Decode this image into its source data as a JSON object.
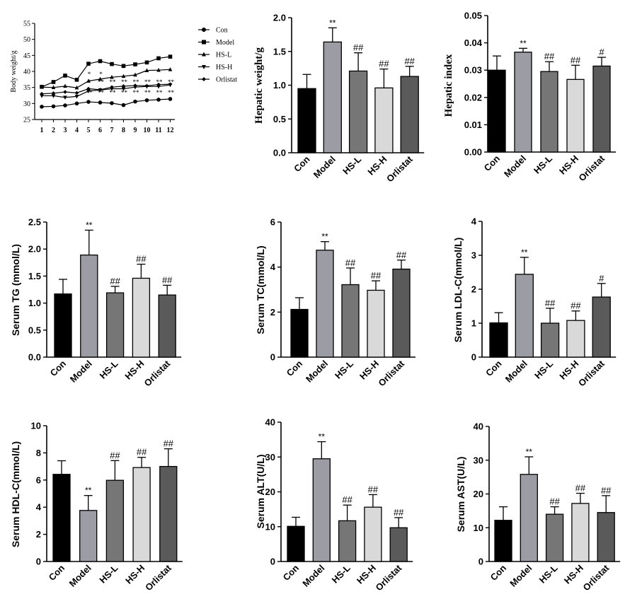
{
  "chart_data": [
    {
      "type": "line",
      "ylabel": "Body weight/g",
      "ylim": [
        25,
        55
      ],
      "yticks": [
        25,
        30,
        35,
        40,
        45,
        50,
        55
      ],
      "x": [
        1,
        2,
        3,
        4,
        5,
        6,
        7,
        8,
        9,
        10,
        11,
        12
      ],
      "series": [
        {
          "name": "Con",
          "marker": "circle",
          "values": [
            29.0,
            29.1,
            29.4,
            30.0,
            30.5,
            30.3,
            30.1,
            29.5,
            30.6,
            31.0,
            31.2,
            31.4
          ]
        },
        {
          "name": "Model",
          "marker": "square",
          "values": [
            35.2,
            36.7,
            38.7,
            37.4,
            42.4,
            43.2,
            42.3,
            41.7,
            42.2,
            42.8,
            44.1,
            44.6
          ]
        },
        {
          "name": "HS-L",
          "marker": "triangle-up",
          "values": [
            35.1,
            35.0,
            35.4,
            34.9,
            37.0,
            37.6,
            38.2,
            38.5,
            38.9,
            40.3,
            40.4,
            40.6
          ]
        },
        {
          "name": "HS-H",
          "marker": "triangle-down",
          "values": [
            32.4,
            32.4,
            31.9,
            32.2,
            33.9,
            34.2,
            34.6,
            34.6,
            35.1,
            35.3,
            35.3,
            35.8
          ]
        },
        {
          "name": "Orlistat",
          "marker": "diamond",
          "values": [
            33.0,
            33.2,
            33.6,
            33.3,
            34.6,
            34.3,
            35.1,
            35.4,
            35.6,
            35.5,
            35.9,
            36.0
          ]
        }
      ],
      "annotations": [
        {
          "x": 5,
          "text": "*"
        },
        {
          "x": 6,
          "text": "*"
        },
        {
          "x": 5,
          "text": "*"
        },
        {
          "x": 6,
          "text": "**"
        },
        {
          "x": 7,
          "text": "**"
        },
        {
          "x": 8,
          "text": "**"
        },
        {
          "x": 9,
          "text": "**"
        },
        {
          "x": 10,
          "text": "**"
        },
        {
          "x": 11,
          "text": "**"
        },
        {
          "x": 12,
          "text": "**"
        },
        {
          "x": 5,
          "text": "**"
        },
        {
          "x": 6,
          "text": "**"
        },
        {
          "x": 7,
          "text": "**"
        },
        {
          "x": 8,
          "text": "**"
        },
        {
          "x": 9,
          "text": "**"
        },
        {
          "x": 10,
          "text": "**"
        },
        {
          "x": 11,
          "text": "**"
        },
        {
          "x": 12,
          "text": "**"
        }
      ]
    },
    {
      "type": "bar",
      "ylabel": "Hepatic weight/g",
      "categories": [
        "Con",
        "Model",
        "HS-L",
        "HS-H",
        "Orlistat"
      ],
      "values": [
        0.95,
        1.64,
        1.21,
        0.96,
        1.13
      ],
      "errors": [
        0.21,
        0.21,
        0.27,
        0.28,
        0.15
      ],
      "marks": [
        "",
        "**",
        "##",
        "##",
        "##"
      ],
      "ylim": [
        0,
        2.0
      ],
      "yticks": [
        "0.0",
        "0.5",
        "1.0",
        "1.5",
        "2.0"
      ]
    },
    {
      "type": "bar",
      "ylabel": "Hepatic index",
      "categories": [
        "Con",
        "Model",
        "HS-L",
        "HS-H",
        "Orlistat"
      ],
      "values": [
        0.03,
        0.0366,
        0.0295,
        0.0266,
        0.0315
      ],
      "errors": [
        0.0052,
        0.0014,
        0.0036,
        0.0052,
        0.0032
      ],
      "marks": [
        "",
        "**",
        "##",
        "##",
        "#"
      ],
      "ylim": [
        0,
        0.05
      ],
      "yticks": [
        "0.00",
        "0.01",
        "0.02",
        "0.03",
        "0.04",
        "0.05"
      ]
    },
    {
      "type": "bar",
      "ylabel": "Serum TG (mmol/L)",
      "categories": [
        "Con",
        "Model",
        "HS-L",
        "HS-H",
        "Orlistat"
      ],
      "values": [
        1.17,
        1.89,
        1.19,
        1.46,
        1.15
      ],
      "errors": [
        0.27,
        0.46,
        0.12,
        0.26,
        0.18
      ],
      "marks": [
        "",
        "**",
        "##",
        "##",
        "##"
      ],
      "ylim": [
        0,
        2.5
      ],
      "yticks": [
        "0.0",
        "0.5",
        "1.0",
        "1.5",
        "2.0",
        "2.5"
      ]
    },
    {
      "type": "bar",
      "ylabel": "Serum TC(mmol/L)",
      "categories": [
        "Con",
        "Model",
        "HS-L",
        "HS-H",
        "Orlistat"
      ],
      "values": [
        2.12,
        4.75,
        3.22,
        2.97,
        3.91
      ],
      "errors": [
        0.52,
        0.38,
        0.74,
        0.42,
        0.4
      ],
      "marks": [
        "",
        "**",
        "##",
        "##",
        "##"
      ],
      "ylim": [
        0,
        6
      ],
      "yticks": [
        "0",
        "2",
        "4",
        "6"
      ]
    },
    {
      "type": "bar",
      "ylabel": "Serum LDL-C(mmol/L)",
      "categories": [
        "Con",
        "Model",
        "HS-L",
        "HS-H",
        "Orlistat"
      ],
      "values": [
        1.01,
        2.44,
        1.0,
        1.08,
        1.77
      ],
      "errors": [
        0.3,
        0.5,
        0.44,
        0.28,
        0.4
      ],
      "marks": [
        "",
        "**",
        "##",
        "##",
        "#"
      ],
      "ylim": [
        0,
        4
      ],
      "yticks": [
        "0",
        "1",
        "2",
        "3",
        "4"
      ]
    },
    {
      "type": "bar",
      "ylabel": "Serum HDL-C(mmol/L)",
      "categories": [
        "Con",
        "Model",
        "HS-L",
        "HS-H",
        "Orlistat"
      ],
      "values": [
        6.42,
        3.76,
        5.98,
        6.92,
        7.0
      ],
      "errors": [
        1.0,
        1.1,
        1.45,
        0.75,
        1.3
      ],
      "marks": [
        "",
        "**",
        "##",
        "##",
        "##"
      ],
      "ylim": [
        0,
        10
      ],
      "yticks": [
        "0",
        "2",
        "4",
        "6",
        "8",
        "10"
      ]
    },
    {
      "type": "bar",
      "ylabel": "Serum ALT(U/L)",
      "categories": [
        "Con",
        "Model",
        "HS-L",
        "HS-H",
        "Orlistat"
      ],
      "values": [
        10.1,
        29.5,
        11.7,
        15.6,
        9.7
      ],
      "errors": [
        2.6,
        4.9,
        4.5,
        3.6,
        2.9
      ],
      "marks": [
        "",
        "**",
        "##",
        "##",
        "##"
      ],
      "ylim": [
        0,
        40
      ],
      "yticks": [
        "0",
        "10",
        "20",
        "30",
        "40"
      ]
    },
    {
      "type": "bar",
      "ylabel": "Serum AST(U/L)",
      "categories": [
        "Con",
        "Model",
        "HS-L",
        "HS-H",
        "Orlistat"
      ],
      "values": [
        12.2,
        25.8,
        14.0,
        17.2,
        14.5
      ],
      "errors": [
        4.0,
        5.2,
        2.2,
        3.0,
        5.0
      ],
      "marks": [
        "",
        "**",
        "##",
        "##",
        "##"
      ],
      "ylim": [
        0,
        40
      ],
      "yticks": [
        "0",
        "10",
        "20",
        "30",
        "40"
      ]
    }
  ],
  "bar_colors": [
    "#000000",
    "#9c9ca4",
    "#767676",
    "#d9d9d9",
    "#5a5a5a"
  ]
}
